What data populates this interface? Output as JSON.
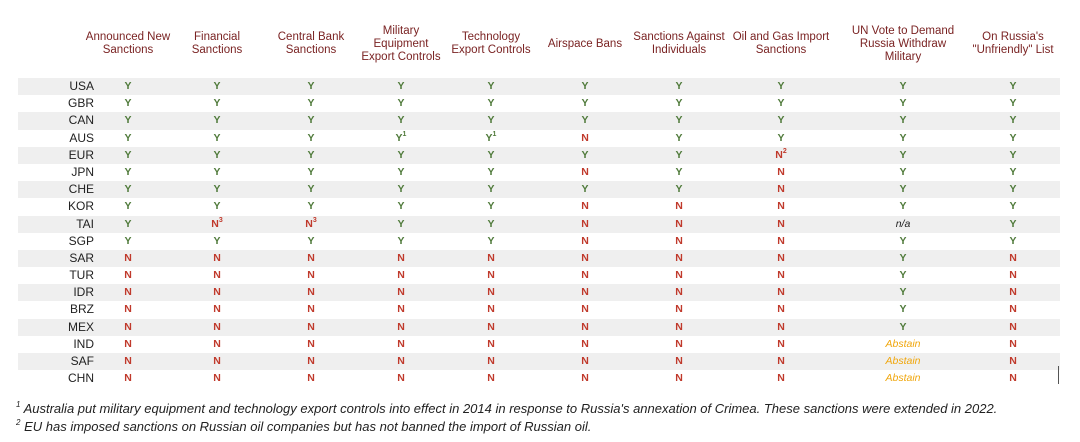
{
  "headers": [
    "Announced New Sanctions",
    "Financial Sanctions",
    "Central Bank Sanctions",
    "Military Equipment Export Controls",
    "Technology Export Controls",
    "Airspace Bans",
    "Sanctions Against Individuals",
    "Oil and Gas Import Sanctions",
    "UN Vote to Demand Russia Withdraw Military",
    "On Russia's \"Unfriendly\" List"
  ],
  "rows": [
    {
      "country": "USA",
      "values": [
        "Y",
        "Y",
        "Y",
        "Y",
        "Y",
        "Y",
        "Y",
        "Y",
        "Y",
        "Y"
      ],
      "notes": [
        "",
        "",
        "",
        "",
        "",
        "",
        "",
        "",
        "",
        ""
      ]
    },
    {
      "country": "GBR",
      "values": [
        "Y",
        "Y",
        "Y",
        "Y",
        "Y",
        "Y",
        "Y",
        "Y",
        "Y",
        "Y"
      ],
      "notes": [
        "",
        "",
        "",
        "",
        "",
        "",
        "",
        "",
        "",
        ""
      ]
    },
    {
      "country": "CAN",
      "values": [
        "Y",
        "Y",
        "Y",
        "Y",
        "Y",
        "Y",
        "Y",
        "Y",
        "Y",
        "Y"
      ],
      "notes": [
        "",
        "",
        "",
        "",
        "",
        "",
        "",
        "",
        "",
        ""
      ]
    },
    {
      "country": "AUS",
      "values": [
        "Y",
        "Y",
        "Y",
        "Y",
        "Y",
        "N",
        "Y",
        "Y",
        "Y",
        "Y"
      ],
      "notes": [
        "",
        "",
        "",
        "1",
        "1",
        "",
        "",
        "",
        "",
        ""
      ]
    },
    {
      "country": "EUR",
      "values": [
        "Y",
        "Y",
        "Y",
        "Y",
        "Y",
        "Y",
        "Y",
        "N",
        "Y",
        "Y"
      ],
      "notes": [
        "",
        "",
        "",
        "",
        "",
        "",
        "",
        "2",
        "",
        ""
      ]
    },
    {
      "country": "JPN",
      "values": [
        "Y",
        "Y",
        "Y",
        "Y",
        "Y",
        "N",
        "Y",
        "N",
        "Y",
        "Y"
      ],
      "notes": [
        "",
        "",
        "",
        "",
        "",
        "",
        "",
        "",
        "",
        ""
      ]
    },
    {
      "country": "CHE",
      "values": [
        "Y",
        "Y",
        "Y",
        "Y",
        "Y",
        "Y",
        "Y",
        "N",
        "Y",
        "Y"
      ],
      "notes": [
        "",
        "",
        "",
        "",
        "",
        "",
        "",
        "",
        "",
        ""
      ]
    },
    {
      "country": "KOR",
      "values": [
        "Y",
        "Y",
        "Y",
        "Y",
        "Y",
        "N",
        "N",
        "N",
        "Y",
        "Y"
      ],
      "notes": [
        "",
        "",
        "",
        "",
        "",
        "",
        "",
        "",
        "",
        ""
      ]
    },
    {
      "country": "TAI",
      "values": [
        "Y",
        "N",
        "N",
        "Y",
        "Y",
        "N",
        "N",
        "N",
        "n/a",
        "Y"
      ],
      "notes": [
        "",
        "3",
        "3",
        "",
        "",
        "",
        "",
        "",
        "",
        ""
      ]
    },
    {
      "country": "SGP",
      "values": [
        "Y",
        "Y",
        "Y",
        "Y",
        "Y",
        "N",
        "N",
        "N",
        "Y",
        "Y"
      ],
      "notes": [
        "",
        "",
        "",
        "",
        "",
        "",
        "",
        "",
        "",
        ""
      ]
    },
    {
      "country": "SAR",
      "values": [
        "N",
        "N",
        "N",
        "N",
        "N",
        "N",
        "N",
        "N",
        "Y",
        "N"
      ],
      "notes": [
        "",
        "",
        "",
        "",
        "",
        "",
        "",
        "",
        "",
        ""
      ]
    },
    {
      "country": "TUR",
      "values": [
        "N",
        "N",
        "N",
        "N",
        "N",
        "N",
        "N",
        "N",
        "Y",
        "N"
      ],
      "notes": [
        "",
        "",
        "",
        "",
        "",
        "",
        "",
        "",
        "",
        ""
      ]
    },
    {
      "country": "IDR",
      "values": [
        "N",
        "N",
        "N",
        "N",
        "N",
        "N",
        "N",
        "N",
        "Y",
        "N"
      ],
      "notes": [
        "",
        "",
        "",
        "",
        "",
        "",
        "",
        "",
        "",
        ""
      ]
    },
    {
      "country": "BRZ",
      "values": [
        "N",
        "N",
        "N",
        "N",
        "N",
        "N",
        "N",
        "N",
        "Y",
        "N"
      ],
      "notes": [
        "",
        "",
        "",
        "",
        "",
        "",
        "",
        "",
        "",
        ""
      ]
    },
    {
      "country": "MEX",
      "values": [
        "N",
        "N",
        "N",
        "N",
        "N",
        "N",
        "N",
        "N",
        "Y",
        "N"
      ],
      "notes": [
        "",
        "",
        "",
        "",
        "",
        "",
        "",
        "",
        "",
        ""
      ]
    },
    {
      "country": "IND",
      "values": [
        "N",
        "N",
        "N",
        "N",
        "N",
        "N",
        "N",
        "N",
        "Abstain",
        "N"
      ],
      "notes": [
        "",
        "",
        "",
        "",
        "",
        "",
        "",
        "",
        "",
        ""
      ]
    },
    {
      "country": "SAF",
      "values": [
        "N",
        "N",
        "N",
        "N",
        "N",
        "N",
        "N",
        "N",
        "Abstain",
        "N"
      ],
      "notes": [
        "",
        "",
        "",
        "",
        "",
        "",
        "",
        "",
        "",
        ""
      ]
    },
    {
      "country": "CHN",
      "values": [
        "N",
        "N",
        "N",
        "N",
        "N",
        "N",
        "N",
        "N",
        "Abstain",
        "N"
      ],
      "notes": [
        "",
        "",
        "",
        "",
        "",
        "",
        "",
        "",
        "",
        ""
      ]
    }
  ],
  "footnotes": [
    {
      "mark": "1",
      "text": "Australia put military equipment and technology export controls into effect in 2014 in response to Russia's annexation of Crimea. These sanctions were extended in 2022."
    },
    {
      "mark": "2",
      "text": "EU has imposed sanctions on Russian oil companies but has not banned the import of Russian oil."
    }
  ]
}
